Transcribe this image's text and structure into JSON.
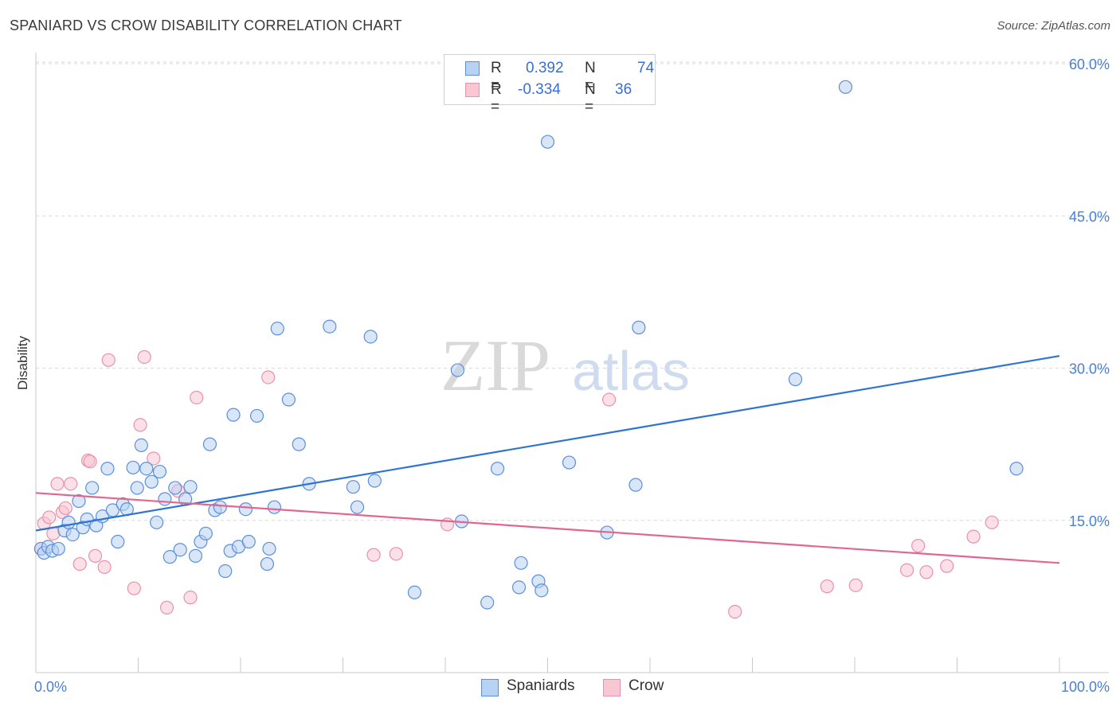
{
  "header": {
    "title": "SPANIARD VS CROW DISABILITY CORRELATION CHART",
    "source": "Source: ZipAtlas.com"
  },
  "watermark": {
    "zip": "ZIP",
    "atlas": "atlas"
  },
  "legend": {
    "rows": [
      {
        "r_label": "R =",
        "r_value": "0.392",
        "n_label": "N =",
        "n_value": "74"
      },
      {
        "r_label": "R =",
        "r_value": "-0.334",
        "n_label": "N =",
        "n_value": "36"
      }
    ]
  },
  "bottom_legend": {
    "spaniards": "Spaniards",
    "crow": "Crow"
  },
  "colors": {
    "spaniards_fill": "#b8d2f3",
    "spaniards_stroke": "#5b8fdb",
    "spaniards_line": "#2f74d0",
    "crow_fill": "#f9c6d4",
    "crow_stroke": "#e892ab",
    "crow_line": "#e2668f",
    "grid": "#d9d9d9",
    "tick_text": "#4a80d4"
  },
  "chart_data": {
    "type": "scatter",
    "title": "SPANIARD VS CROW DISABILITY CORRELATION CHART",
    "xlabel": "",
    "ylabel": "Disability",
    "xlim": [
      0,
      100
    ],
    "ylim": [
      0,
      60
    ],
    "y_ticks": [
      {
        "value": 15,
        "label": "15.0%"
      },
      {
        "value": 30,
        "label": "30.0%"
      },
      {
        "value": 45,
        "label": "45.0%"
      },
      {
        "value": 60,
        "label": "60.0%"
      }
    ],
    "x_tick_labels": [
      {
        "value": 0,
        "label": "0.0%"
      },
      {
        "value": 100,
        "label": "100.0%"
      }
    ],
    "grid": "horizontal dashed",
    "legend_position": "top-center",
    "series": [
      {
        "name": "Spaniards",
        "R": 0.392,
        "N": 74,
        "trend": [
          [
            0,
            14.0
          ],
          [
            100,
            31.2
          ]
        ],
        "points": [
          [
            0.5,
            12.2
          ],
          [
            0.8,
            11.8
          ],
          [
            1.2,
            12.4
          ],
          [
            1.6,
            12.0
          ],
          [
            2.2,
            12.2
          ],
          [
            2.8,
            14.0
          ],
          [
            3.2,
            14.8
          ],
          [
            3.6,
            13.6
          ],
          [
            4.2,
            16.9
          ],
          [
            4.6,
            14.3
          ],
          [
            5.0,
            15.1
          ],
          [
            5.5,
            18.2
          ],
          [
            5.9,
            14.5
          ],
          [
            6.5,
            15.4
          ],
          [
            7.0,
            20.1
          ],
          [
            7.5,
            16.0
          ],
          [
            8.0,
            12.9
          ],
          [
            8.5,
            16.6
          ],
          [
            8.9,
            16.1
          ],
          [
            9.5,
            20.2
          ],
          [
            9.9,
            18.2
          ],
          [
            10.3,
            22.4
          ],
          [
            10.8,
            20.1
          ],
          [
            11.3,
            18.8
          ],
          [
            11.8,
            14.8
          ],
          [
            12.1,
            19.8
          ],
          [
            12.6,
            17.1
          ],
          [
            13.1,
            11.4
          ],
          [
            13.6,
            18.2
          ],
          [
            14.1,
            12.1
          ],
          [
            14.6,
            17.1
          ],
          [
            15.1,
            18.3
          ],
          [
            15.6,
            11.5
          ],
          [
            16.1,
            12.9
          ],
          [
            16.6,
            13.7
          ],
          [
            17.0,
            22.5
          ],
          [
            17.5,
            16.0
          ],
          [
            18.0,
            16.3
          ],
          [
            18.5,
            10.0
          ],
          [
            19.0,
            12.0
          ],
          [
            19.3,
            25.4
          ],
          [
            19.8,
            12.4
          ],
          [
            20.5,
            16.1
          ],
          [
            20.8,
            12.9
          ],
          [
            21.6,
            25.3
          ],
          [
            22.6,
            10.7
          ],
          [
            22.8,
            12.2
          ],
          [
            23.3,
            16.3
          ],
          [
            23.6,
            33.9
          ],
          [
            24.7,
            26.9
          ],
          [
            25.7,
            22.5
          ],
          [
            26.7,
            18.6
          ],
          [
            28.7,
            34.1
          ],
          [
            31.0,
            18.3
          ],
          [
            31.4,
            16.3
          ],
          [
            32.7,
            33.1
          ],
          [
            33.1,
            18.9
          ],
          [
            37.0,
            7.9
          ],
          [
            41.2,
            29.8
          ],
          [
            41.6,
            14.9
          ],
          [
            44.1,
            6.9
          ],
          [
            45.1,
            20.1
          ],
          [
            47.2,
            8.4
          ],
          [
            47.4,
            10.8
          ],
          [
            49.1,
            9.0
          ],
          [
            49.4,
            8.1
          ],
          [
            50.0,
            52.3
          ],
          [
            52.1,
            20.7
          ],
          [
            55.8,
            13.8
          ],
          [
            58.6,
            18.5
          ],
          [
            58.9,
            34.0
          ],
          [
            74.2,
            28.9
          ],
          [
            79.1,
            57.7
          ],
          [
            95.8,
            20.1
          ]
        ]
      },
      {
        "name": "Crow",
        "R": -0.334,
        "N": 36,
        "trend": [
          [
            0,
            17.7
          ],
          [
            100,
            10.8
          ]
        ],
        "points": [
          [
            0.5,
            12.2
          ],
          [
            0.8,
            14.7
          ],
          [
            1.3,
            15.3
          ],
          [
            1.7,
            13.7
          ],
          [
            2.1,
            18.6
          ],
          [
            2.6,
            15.8
          ],
          [
            2.9,
            16.2
          ],
          [
            3.4,
            18.6
          ],
          [
            4.3,
            10.7
          ],
          [
            5.1,
            20.9
          ],
          [
            5.3,
            20.8
          ],
          [
            5.8,
            11.5
          ],
          [
            6.7,
            10.4
          ],
          [
            7.1,
            30.8
          ],
          [
            9.6,
            8.3
          ],
          [
            10.2,
            24.4
          ],
          [
            10.6,
            31.1
          ],
          [
            11.5,
            21.1
          ],
          [
            12.8,
            6.4
          ],
          [
            13.9,
            17.9
          ],
          [
            15.1,
            7.4
          ],
          [
            15.7,
            27.1
          ],
          [
            22.7,
            29.1
          ],
          [
            33.0,
            11.6
          ],
          [
            35.2,
            11.7
          ],
          [
            40.2,
            14.6
          ],
          [
            56.0,
            26.9
          ],
          [
            68.3,
            6.0
          ],
          [
            77.3,
            8.5
          ],
          [
            80.1,
            8.6
          ],
          [
            85.1,
            10.1
          ],
          [
            86.2,
            12.5
          ],
          [
            87.0,
            9.9
          ],
          [
            89.0,
            10.5
          ],
          [
            91.6,
            13.4
          ],
          [
            93.4,
            14.8
          ]
        ]
      }
    ]
  }
}
